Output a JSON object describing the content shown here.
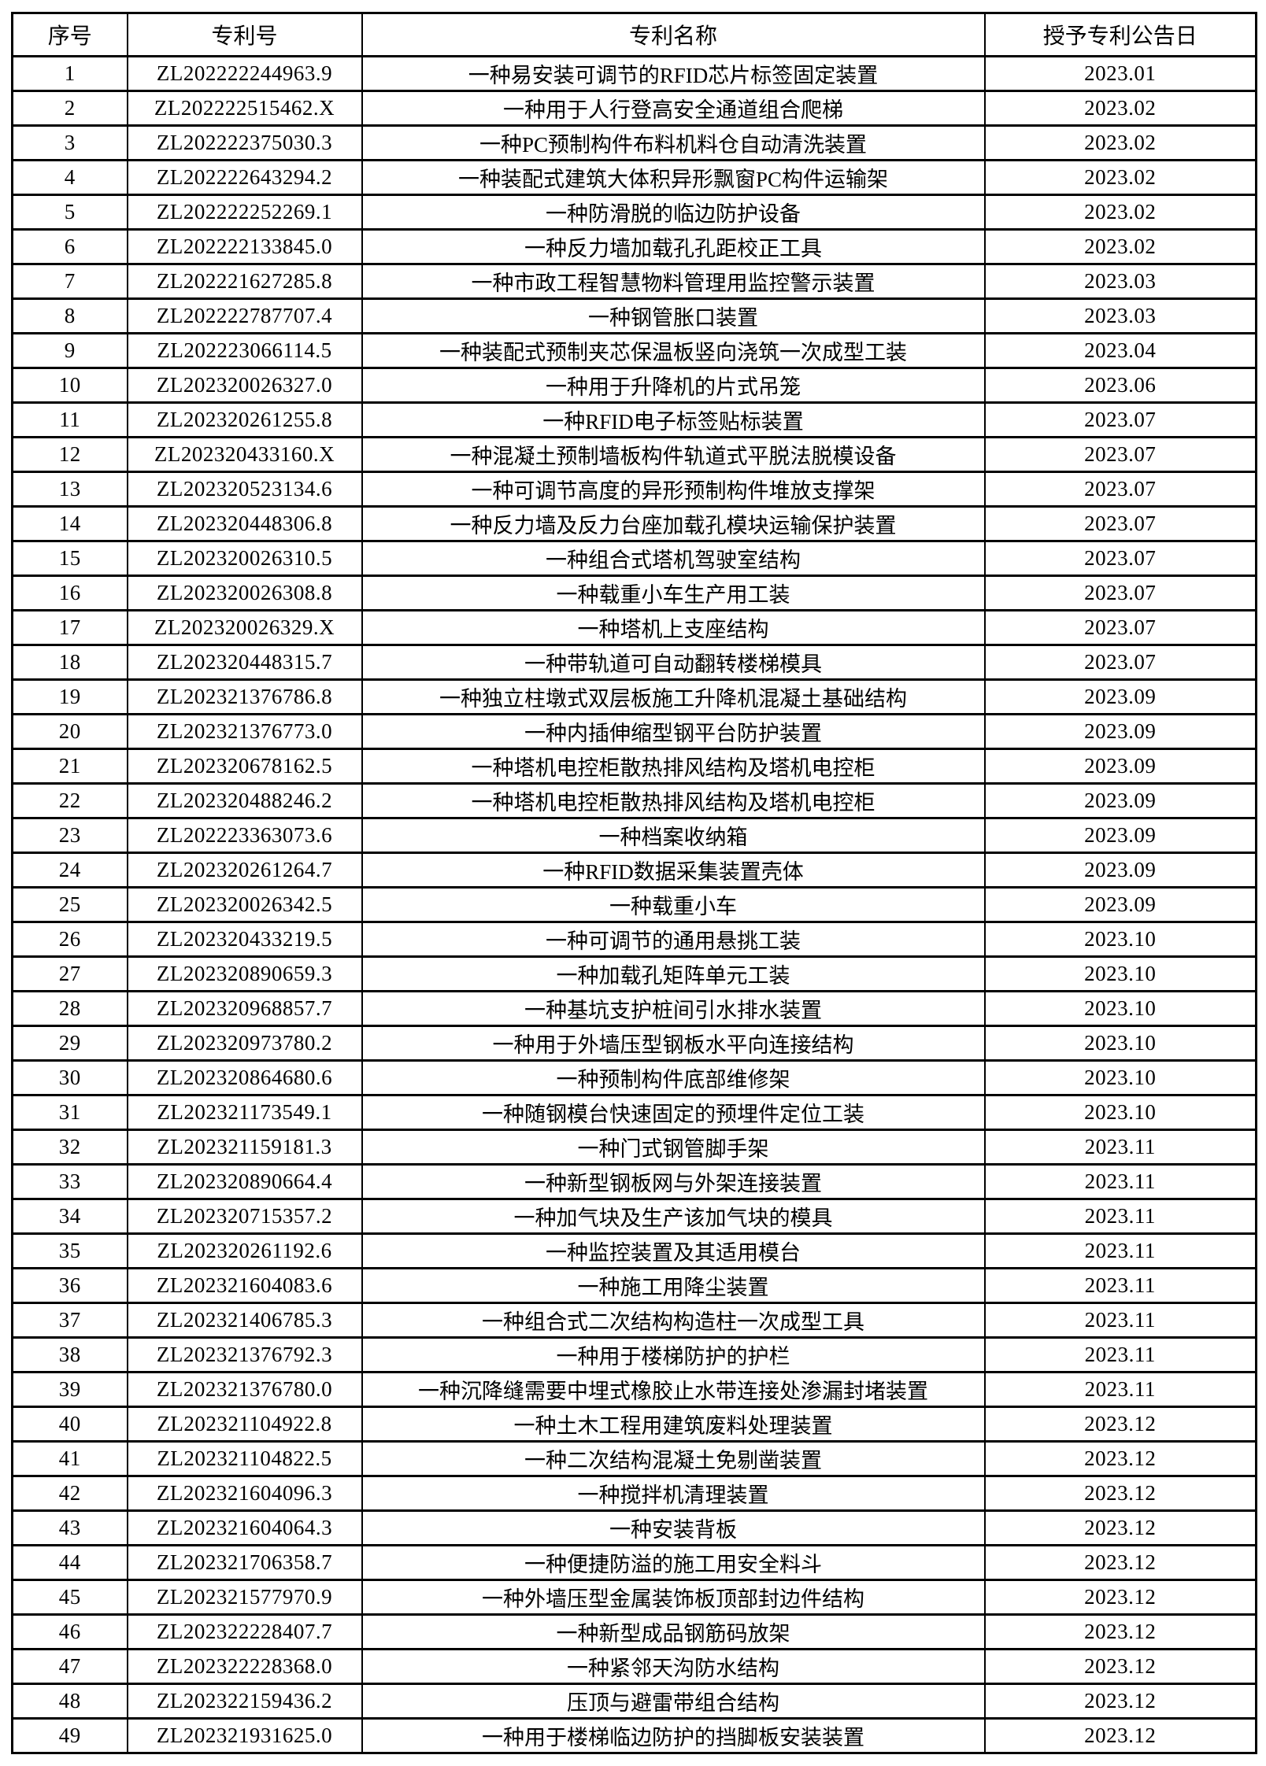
{
  "table": {
    "headers": [
      "序号",
      "专利号",
      "专利名称",
      "授予专利公告日"
    ],
    "rows": [
      [
        "1",
        "ZL202222244963.9",
        "一种易安装可调节的RFID芯片标签固定装置",
        "2023.01"
      ],
      [
        "2",
        "ZL202222515462.X",
        "一种用于人行登高安全通道组合爬梯",
        "2023.02"
      ],
      [
        "3",
        "ZL202222375030.3",
        "一种PC预制构件布料机料仓自动清洗装置",
        "2023.02"
      ],
      [
        "4",
        "ZL202222643294.2",
        "一种装配式建筑大体积异形飘窗PC构件运输架",
        "2023.02"
      ],
      [
        "5",
        "ZL202222252269.1",
        "一种防滑脱的临边防护设备",
        "2023.02"
      ],
      [
        "6",
        "ZL202222133845.0",
        "一种反力墙加载孔孔距校正工具",
        "2023.02"
      ],
      [
        "7",
        "ZL202221627285.8",
        "一种市政工程智慧物料管理用监控警示装置",
        "2023.03"
      ],
      [
        "8",
        "ZL202222787707.4",
        "一种钢管胀口装置",
        "2023.03"
      ],
      [
        "9",
        "ZL202223066114.5",
        "一种装配式预制夹芯保温板竖向浇筑一次成型工装",
        "2023.04"
      ],
      [
        "10",
        "ZL202320026327.0",
        "一种用于升降机的片式吊笼",
        "2023.06"
      ],
      [
        "11",
        "ZL202320261255.8",
        "一种RFID电子标签贴标装置",
        "2023.07"
      ],
      [
        "12",
        "ZL202320433160.X",
        "一种混凝土预制墙板构件轨道式平脱法脱模设备",
        "2023.07"
      ],
      [
        "13",
        "ZL202320523134.6",
        "一种可调节高度的异形预制构件堆放支撑架",
        "2023.07"
      ],
      [
        "14",
        "ZL202320448306.8",
        "一种反力墙及反力台座加载孔模块运输保护装置",
        "2023.07"
      ],
      [
        "15",
        "ZL202320026310.5",
        "一种组合式塔机驾驶室结构",
        "2023.07"
      ],
      [
        "16",
        "ZL202320026308.8",
        "一种载重小车生产用工装",
        "2023.07"
      ],
      [
        "17",
        "ZL202320026329.X",
        "一种塔机上支座结构",
        "2023.07"
      ],
      [
        "18",
        "ZL202320448315.7",
        "一种带轨道可自动翻转楼梯模具",
        "2023.07"
      ],
      [
        "19",
        "ZL202321376786.8",
        "一种独立柱墩式双层板施工升降机混凝土基础结构",
        "2023.09"
      ],
      [
        "20",
        "ZL202321376773.0",
        "一种内插伸缩型钢平台防护装置",
        "2023.09"
      ],
      [
        "21",
        "ZL202320678162.5",
        "一种塔机电控柜散热排风结构及塔机电控柜",
        "2023.09"
      ],
      [
        "22",
        "ZL202320488246.2",
        "一种塔机电控柜散热排风结构及塔机电控柜",
        "2023.09"
      ],
      [
        "23",
        "ZL202223363073.6",
        "一种档案收纳箱",
        "2023.09"
      ],
      [
        "24",
        "ZL202320261264.7",
        "一种RFID数据采集装置壳体",
        "2023.09"
      ],
      [
        "25",
        "ZL202320026342.5",
        "一种载重小车",
        "2023.09"
      ],
      [
        "26",
        "ZL202320433219.5",
        "一种可调节的通用悬挑工装",
        "2023.10"
      ],
      [
        "27",
        "ZL202320890659.3",
        "一种加载孔矩阵单元工装",
        "2023.10"
      ],
      [
        "28",
        "ZL202320968857.7",
        "一种基坑支护桩间引水排水装置",
        "2023.10"
      ],
      [
        "29",
        "ZL202320973780.2",
        "一种用于外墙压型钢板水平向连接结构",
        "2023.10"
      ],
      [
        "30",
        "ZL202320864680.6",
        "一种预制构件底部维修架",
        "2023.10"
      ],
      [
        "31",
        "ZL202321173549.1",
        "一种随钢模台快速固定的预埋件定位工装",
        "2023.10"
      ],
      [
        "32",
        "ZL202321159181.3",
        "一种门式钢管脚手架",
        "2023.11"
      ],
      [
        "33",
        "ZL202320890664.4",
        "一种新型钢板网与外架连接装置",
        "2023.11"
      ],
      [
        "34",
        "ZL202320715357.2",
        "一种加气块及生产该加气块的模具",
        "2023.11"
      ],
      [
        "35",
        "ZL202320261192.6",
        "一种监控装置及其适用模台",
        "2023.11"
      ],
      [
        "36",
        "ZL202321604083.6",
        "一种施工用降尘装置",
        "2023.11"
      ],
      [
        "37",
        "ZL202321406785.3",
        "一种组合式二次结构构造柱一次成型工具",
        "2023.11"
      ],
      [
        "38",
        "ZL202321376792.3",
        "一种用于楼梯防护的护栏",
        "2023.11"
      ],
      [
        "39",
        "ZL202321376780.0",
        "一种沉降缝需要中埋式橡胶止水带连接处渗漏封堵装置",
        "2023.11"
      ],
      [
        "40",
        "ZL202321104922.8",
        "一种土木工程用建筑废料处理装置",
        "2023.12"
      ],
      [
        "41",
        "ZL202321104822.5",
        "一种二次结构混凝土免剔凿装置",
        "2023.12"
      ],
      [
        "42",
        "ZL202321604096.3",
        "一种搅拌机清理装置",
        "2023.12"
      ],
      [
        "43",
        "ZL202321604064.3",
        "一种安装背板",
        "2023.12"
      ],
      [
        "44",
        "ZL202321706358.7",
        "一种便捷防溢的施工用安全料斗",
        "2023.12"
      ],
      [
        "45",
        "ZL202321577970.9",
        "一种外墙压型金属装饰板顶部封边件结构",
        "2023.12"
      ],
      [
        "46",
        "ZL202322228407.7",
        "一种新型成品钢筋码放架",
        "2023.12"
      ],
      [
        "47",
        "ZL202322228368.0",
        "一种紧邻天沟防水结构",
        "2023.12"
      ],
      [
        "48",
        "ZL202322159436.2",
        "压顶与避雷带组合结构",
        "2023.12"
      ],
      [
        "49",
        "ZL202321931625.0",
        "一种用于楼梯临边防护的挡脚板安装装置",
        "2023.12"
      ]
    ]
  }
}
